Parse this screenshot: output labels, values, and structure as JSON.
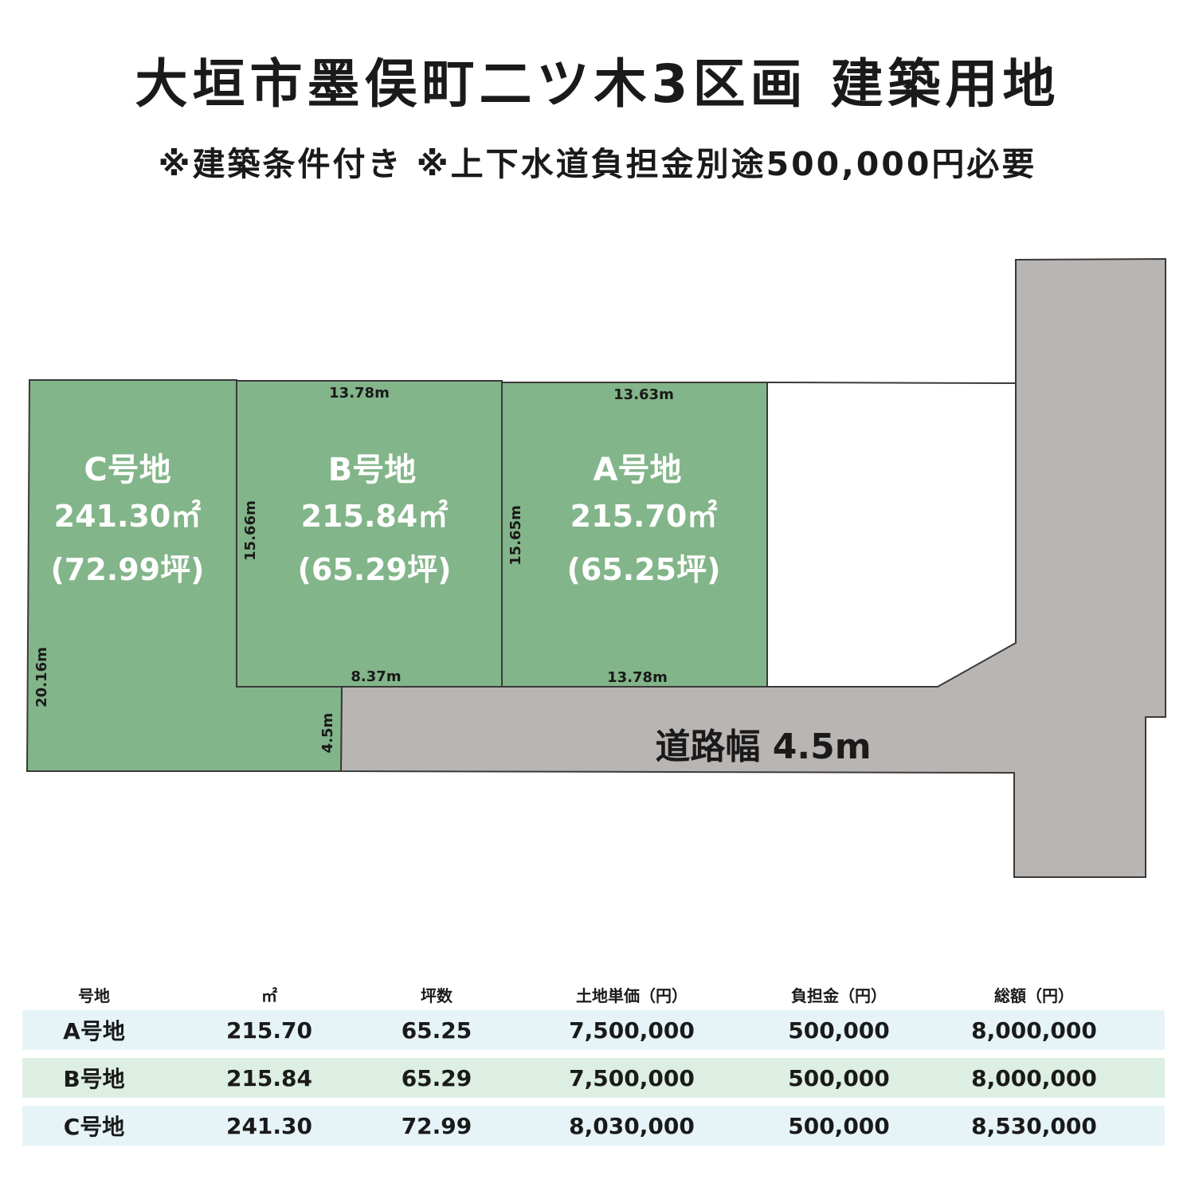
{
  "title": "大垣市墨俣町二ツ木3区画 建築用地",
  "subtitle": "※建築条件付き ※上下水道負担金別途500,000円必要",
  "plots": [
    {
      "name": "C号地",
      "area": "241.30㎡",
      "tsubo": "(72.99坪)"
    },
    {
      "name": "B号地",
      "area": "215.84㎡",
      "tsubo": "(65.29坪)"
    },
    {
      "name": "A号地",
      "area": "215.70㎡",
      "tsubo": "(65.25坪)"
    }
  ],
  "dimensions": {
    "b_top": "13.78m",
    "a_top": "13.63m",
    "b_left": "15.66m",
    "a_left": "15.65m",
    "c_left": "20.16m",
    "b_bottom": "8.37m",
    "a_bottom": "13.78m",
    "c_road": "4.5m"
  },
  "road_label": "道路幅 4.5m",
  "colors": {
    "plot": "#82b589",
    "road": "#b9b5b3",
    "outline": "#3a3a3a"
  },
  "table": {
    "headers": [
      "号地",
      "㎡",
      "坪数",
      "土地単価（円）",
      "負担金（円）",
      "総額（円）"
    ],
    "rows": [
      [
        "A号地",
        "215.70",
        "65.25",
        "7,500,000",
        "500,000",
        "8,000,000"
      ],
      [
        "B号地",
        "215.84",
        "65.29",
        "7,500,000",
        "500,000",
        "8,000,000"
      ],
      [
        "C号地",
        "241.30",
        "72.99",
        "8,030,000",
        "500,000",
        "8,530,000"
      ]
    ]
  }
}
